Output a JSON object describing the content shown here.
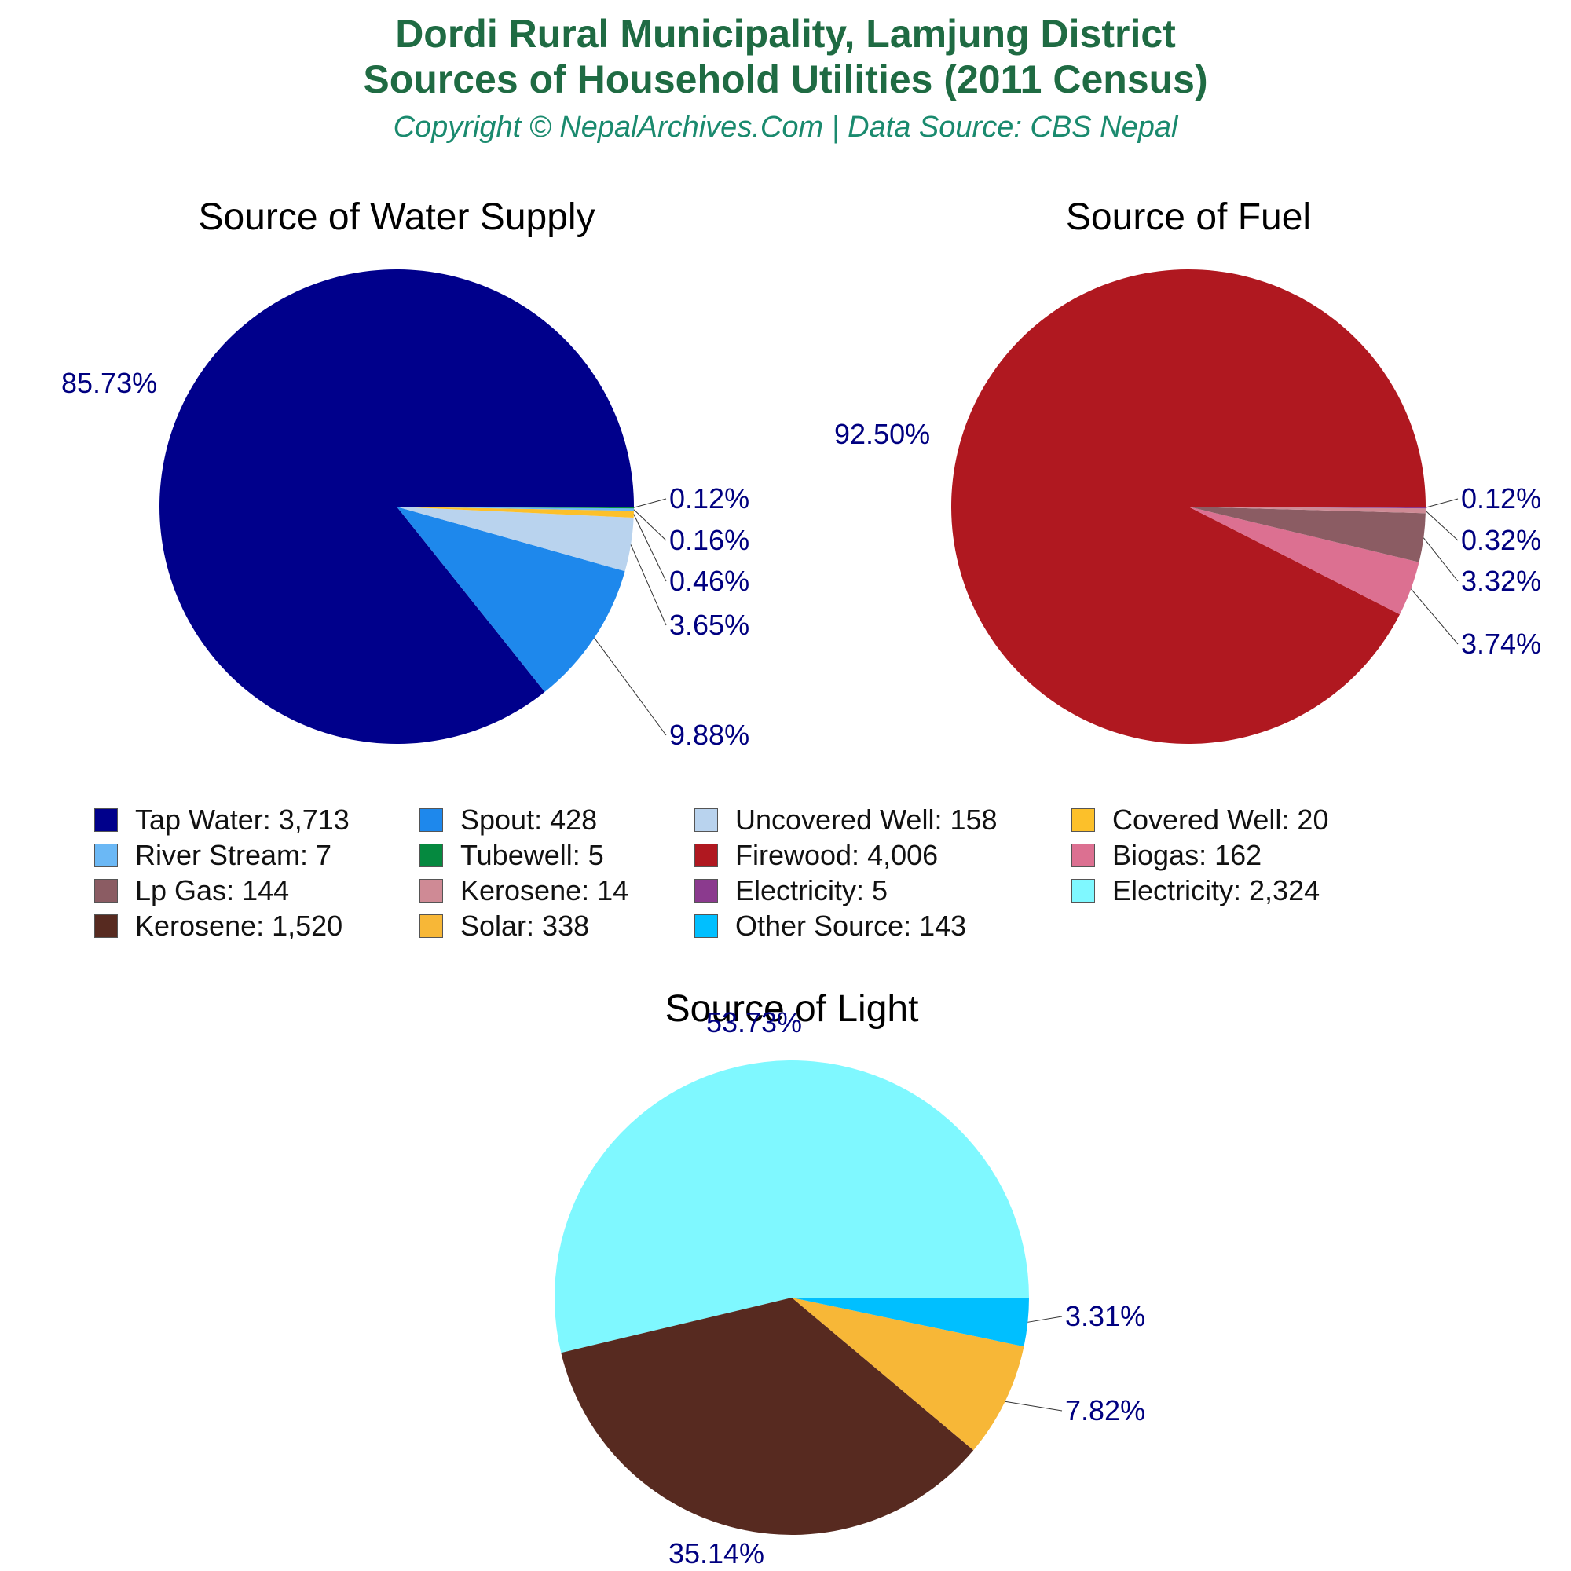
{
  "header": {
    "title_line1": "Dordi Rural Municipality, Lamjung District",
    "title_line2": "Sources of Household Utilities (2011 Census)",
    "subtitle": "Copyright © NepalArchives.Com | Data Source: CBS Nepal"
  },
  "chart_data": [
    {
      "type": "pie",
      "title": "Source of Water Supply",
      "slices": [
        {
          "label": "Tap Water",
          "value": 3713,
          "pct": "85.73%",
          "color": "#00008b"
        },
        {
          "label": "Spout",
          "value": 428,
          "pct": "9.88%",
          "color": "#1e88ec"
        },
        {
          "label": "Uncovered Well",
          "value": 158,
          "pct": "3.65%",
          "color": "#b9d3ee"
        },
        {
          "label": "Covered Well",
          "value": 20,
          "pct": "0.46%",
          "color": "#fcc02a"
        },
        {
          "label": "River Stream",
          "value": 7,
          "pct": "0.16%",
          "color": "#6bb8f5"
        },
        {
          "label": "Tubewell",
          "value": 5,
          "pct": "0.12%",
          "color": "#05893f"
        }
      ]
    },
    {
      "type": "pie",
      "title": "Source of Fuel",
      "slices": [
        {
          "label": "Firewood",
          "value": 4006,
          "pct": "92.50%",
          "color": "#b01820"
        },
        {
          "label": "Biogas",
          "value": 162,
          "pct": "3.74%",
          "color": "#dc7091"
        },
        {
          "label": "Lp Gas",
          "value": 144,
          "pct": "3.32%",
          "color": "#8b5c63"
        },
        {
          "label": "Kerosene",
          "value": 14,
          "pct": "0.32%",
          "color": "#cf8a95"
        },
        {
          "label": "Electricity",
          "value": 5,
          "pct": "0.12%",
          "color": "#8b3a8e"
        }
      ]
    },
    {
      "type": "pie",
      "title": "Source of Light",
      "slices": [
        {
          "label": "Electricity",
          "value": 2324,
          "pct": "53.73%",
          "color": "#7ff8ff"
        },
        {
          "label": "Kerosene",
          "value": 1520,
          "pct": "35.14%",
          "color": "#572a20"
        },
        {
          "label": "Solar",
          "value": 338,
          "pct": "7.82%",
          "color": "#f7b737"
        },
        {
          "label": "Other Source",
          "value": 143,
          "pct": "3.31%",
          "color": "#00bfff"
        }
      ]
    }
  ],
  "legend": [
    {
      "text": "Tap Water: 3,713",
      "color": "#00008b"
    },
    {
      "text": "Spout: 428",
      "color": "#1e88ec"
    },
    {
      "text": "Uncovered Well: 158",
      "color": "#b9d3ee"
    },
    {
      "text": "Covered Well: 20",
      "color": "#fcc02a"
    },
    {
      "text": "River Stream: 7",
      "color": "#6bb8f5"
    },
    {
      "text": "Tubewell: 5",
      "color": "#05893f"
    },
    {
      "text": "Firewood: 4,006",
      "color": "#b01820"
    },
    {
      "text": "Biogas: 162",
      "color": "#dc7091"
    },
    {
      "text": "Lp Gas: 144",
      "color": "#8b5c63"
    },
    {
      "text": "Kerosene: 14",
      "color": "#cf8a95"
    },
    {
      "text": "Electricity: 5",
      "color": "#8b3a8e"
    },
    {
      "text": "Electricity: 2,324",
      "color": "#7ff8ff"
    },
    {
      "text": "Kerosene: 1,520",
      "color": "#572a20"
    },
    {
      "text": "Solar: 338",
      "color": "#f7b737"
    },
    {
      "text": "Other Source: 143",
      "color": "#00bfff"
    }
  ]
}
